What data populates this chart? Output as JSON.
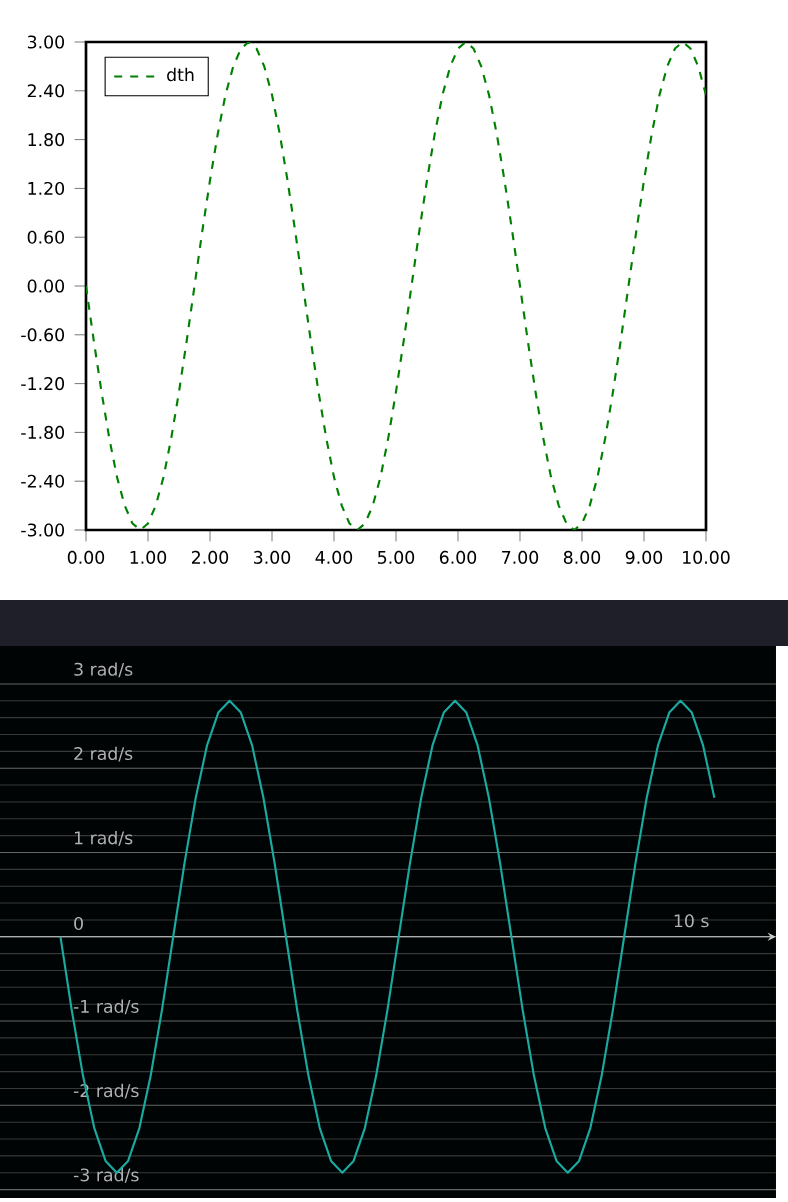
{
  "chart_data": [
    {
      "type": "line",
      "xlim": [
        0,
        10
      ],
      "ylim": [
        -3,
        3
      ],
      "legend": "top left",
      "line_style": "dashed",
      "xticks": [
        {
          "value": 0,
          "label": "0.00"
        },
        {
          "value": 1,
          "label": "1.00"
        },
        {
          "value": 2,
          "label": "2.00"
        },
        {
          "value": 3,
          "label": "3.00"
        },
        {
          "value": 4,
          "label": "4.00"
        },
        {
          "value": 5,
          "label": "5.00"
        },
        {
          "value": 6,
          "label": "6.00"
        },
        {
          "value": 7,
          "label": "7.00"
        },
        {
          "value": 8,
          "label": "8.00"
        },
        {
          "value": 9,
          "label": "9.00"
        },
        {
          "value": 10,
          "label": "10.00"
        }
      ],
      "yticks": [
        {
          "value": -3,
          "label": "-3.00"
        },
        {
          "value": -2.4,
          "label": "-2.40"
        },
        {
          "value": -1.8,
          "label": "-1.80"
        },
        {
          "value": -1.2,
          "label": "-1.20"
        },
        {
          "value": -0.6,
          "label": "-0.60"
        },
        {
          "value": 0,
          "label": "0.00"
        },
        {
          "value": 0.6,
          "label": "0.60"
        },
        {
          "value": 1.2,
          "label": "1.20"
        },
        {
          "value": 1.8,
          "label": "1.80"
        },
        {
          "value": 2.4,
          "label": "2.40"
        },
        {
          "value": 3,
          "label": "3.00"
        }
      ],
      "series": [
        {
          "name": "dth",
          "color": "#008000",
          "x": [
            0,
            0.125,
            0.25,
            0.375,
            0.5,
            0.625,
            0.75,
            0.875,
            1,
            1.125,
            1.25,
            1.375,
            1.5,
            1.625,
            1.75,
            1.875,
            2,
            2.125,
            2.25,
            2.375,
            2.5,
            2.625,
            2.75,
            2.875,
            3,
            3.125,
            3.25,
            3.375,
            3.5,
            3.625,
            3.75,
            3.875,
            4,
            4.125,
            4.25,
            4.375,
            4.5,
            4.625,
            4.75,
            4.875,
            5,
            5.125,
            5.25,
            5.375,
            5.5,
            5.625,
            5.75,
            5.875,
            6,
            6.125,
            6.25,
            6.375,
            6.5,
            6.625,
            6.75,
            6.875,
            7,
            7.125,
            7.25,
            7.375,
            7.5,
            7.625,
            7.75,
            7.875,
            8,
            8.125,
            8.25,
            8.375,
            8.5,
            8.625,
            8.75,
            8.875,
            9,
            9.125,
            9.25,
            9.375,
            9.5,
            9.625,
            9.75,
            9.875,
            10
          ],
          "values": [
            0,
            -0.67,
            -1.3,
            -1.87,
            -2.35,
            -2.7,
            -2.92,
            -3,
            -2.92,
            -2.7,
            -2.35,
            -1.87,
            -1.3,
            -0.67,
            0,
            0.67,
            1.3,
            1.87,
            2.35,
            2.7,
            2.92,
            3,
            2.92,
            2.7,
            2.35,
            1.87,
            1.3,
            0.67,
            0,
            -0.67,
            -1.3,
            -1.87,
            -2.35,
            -2.7,
            -2.92,
            -3,
            -2.92,
            -2.7,
            -2.35,
            -1.87,
            -1.3,
            -0.67,
            0,
            0.67,
            1.3,
            1.87,
            2.35,
            2.7,
            2.92,
            3,
            2.92,
            2.7,
            2.35,
            1.87,
            1.3,
            0.67,
            0,
            -0.67,
            -1.3,
            -1.87,
            -2.35,
            -2.7,
            -2.92,
            -3,
            -2.92,
            -2.7,
            -2.35,
            -1.87,
            -1.3,
            -0.67,
            0,
            0.67,
            1.3,
            1.87,
            2.35,
            2.7,
            2.92,
            3,
            2.92,
            2.7,
            2.35
          ]
        }
      ]
    },
    {
      "type": "line",
      "ylim": [
        -3.1,
        3.45
      ],
      "grid": "y",
      "line_style": "solid",
      "annotations": [
        "10 s"
      ],
      "categories": [
        null,
        null,
        null,
        null,
        null,
        null,
        null,
        null,
        null,
        null,
        null,
        null,
        null,
        null,
        null,
        null,
        null,
        null,
        null,
        null,
        null,
        null,
        null,
        null,
        null,
        null,
        null,
        null,
        null,
        null,
        null,
        null,
        null,
        null,
        null,
        null,
        null,
        null,
        null,
        null,
        null,
        null,
        null,
        null,
        null,
        null,
        null,
        null,
        null,
        null,
        null,
        null,
        null,
        null,
        null,
        null,
        null,
        null,
        null
      ],
      "yticks": [
        {
          "value": -3,
          "label": "-3 rad/s"
        },
        {
          "value": -2,
          "label": "-2 rad/s"
        },
        {
          "value": -1,
          "label": "-1 rad/s"
        },
        {
          "value": 0,
          "label": "0"
        },
        {
          "value": 1,
          "label": "1 rad/s"
        },
        {
          "value": 2,
          "label": "2 rad/s"
        },
        {
          "value": 3,
          "label": "3 rad/s"
        }
      ],
      "series": [
        {
          "color": "#1aaaa2",
          "values": [
            0,
            -0.87,
            -1.65,
            -2.27,
            -2.66,
            -2.8,
            -2.66,
            -2.27,
            -1.65,
            -0.87,
            0,
            0.87,
            1.65,
            2.27,
            2.66,
            2.8,
            2.66,
            2.27,
            1.65,
            0.87,
            0,
            -0.87,
            -1.65,
            -2.27,
            -2.66,
            -2.8,
            -2.66,
            -2.27,
            -1.65,
            -0.87,
            0,
            0.87,
            1.65,
            2.27,
            2.66,
            2.8,
            2.66,
            2.27,
            1.65,
            0.87,
            0,
            -0.87,
            -1.65,
            -2.27,
            -2.66,
            -2.8,
            -2.66,
            -2.27,
            -1.65,
            -0.87,
            0,
            0.87,
            1.65,
            2.27,
            2.66,
            2.8,
            2.66,
            2.27,
            1.65
          ]
        }
      ]
    }
  ]
}
